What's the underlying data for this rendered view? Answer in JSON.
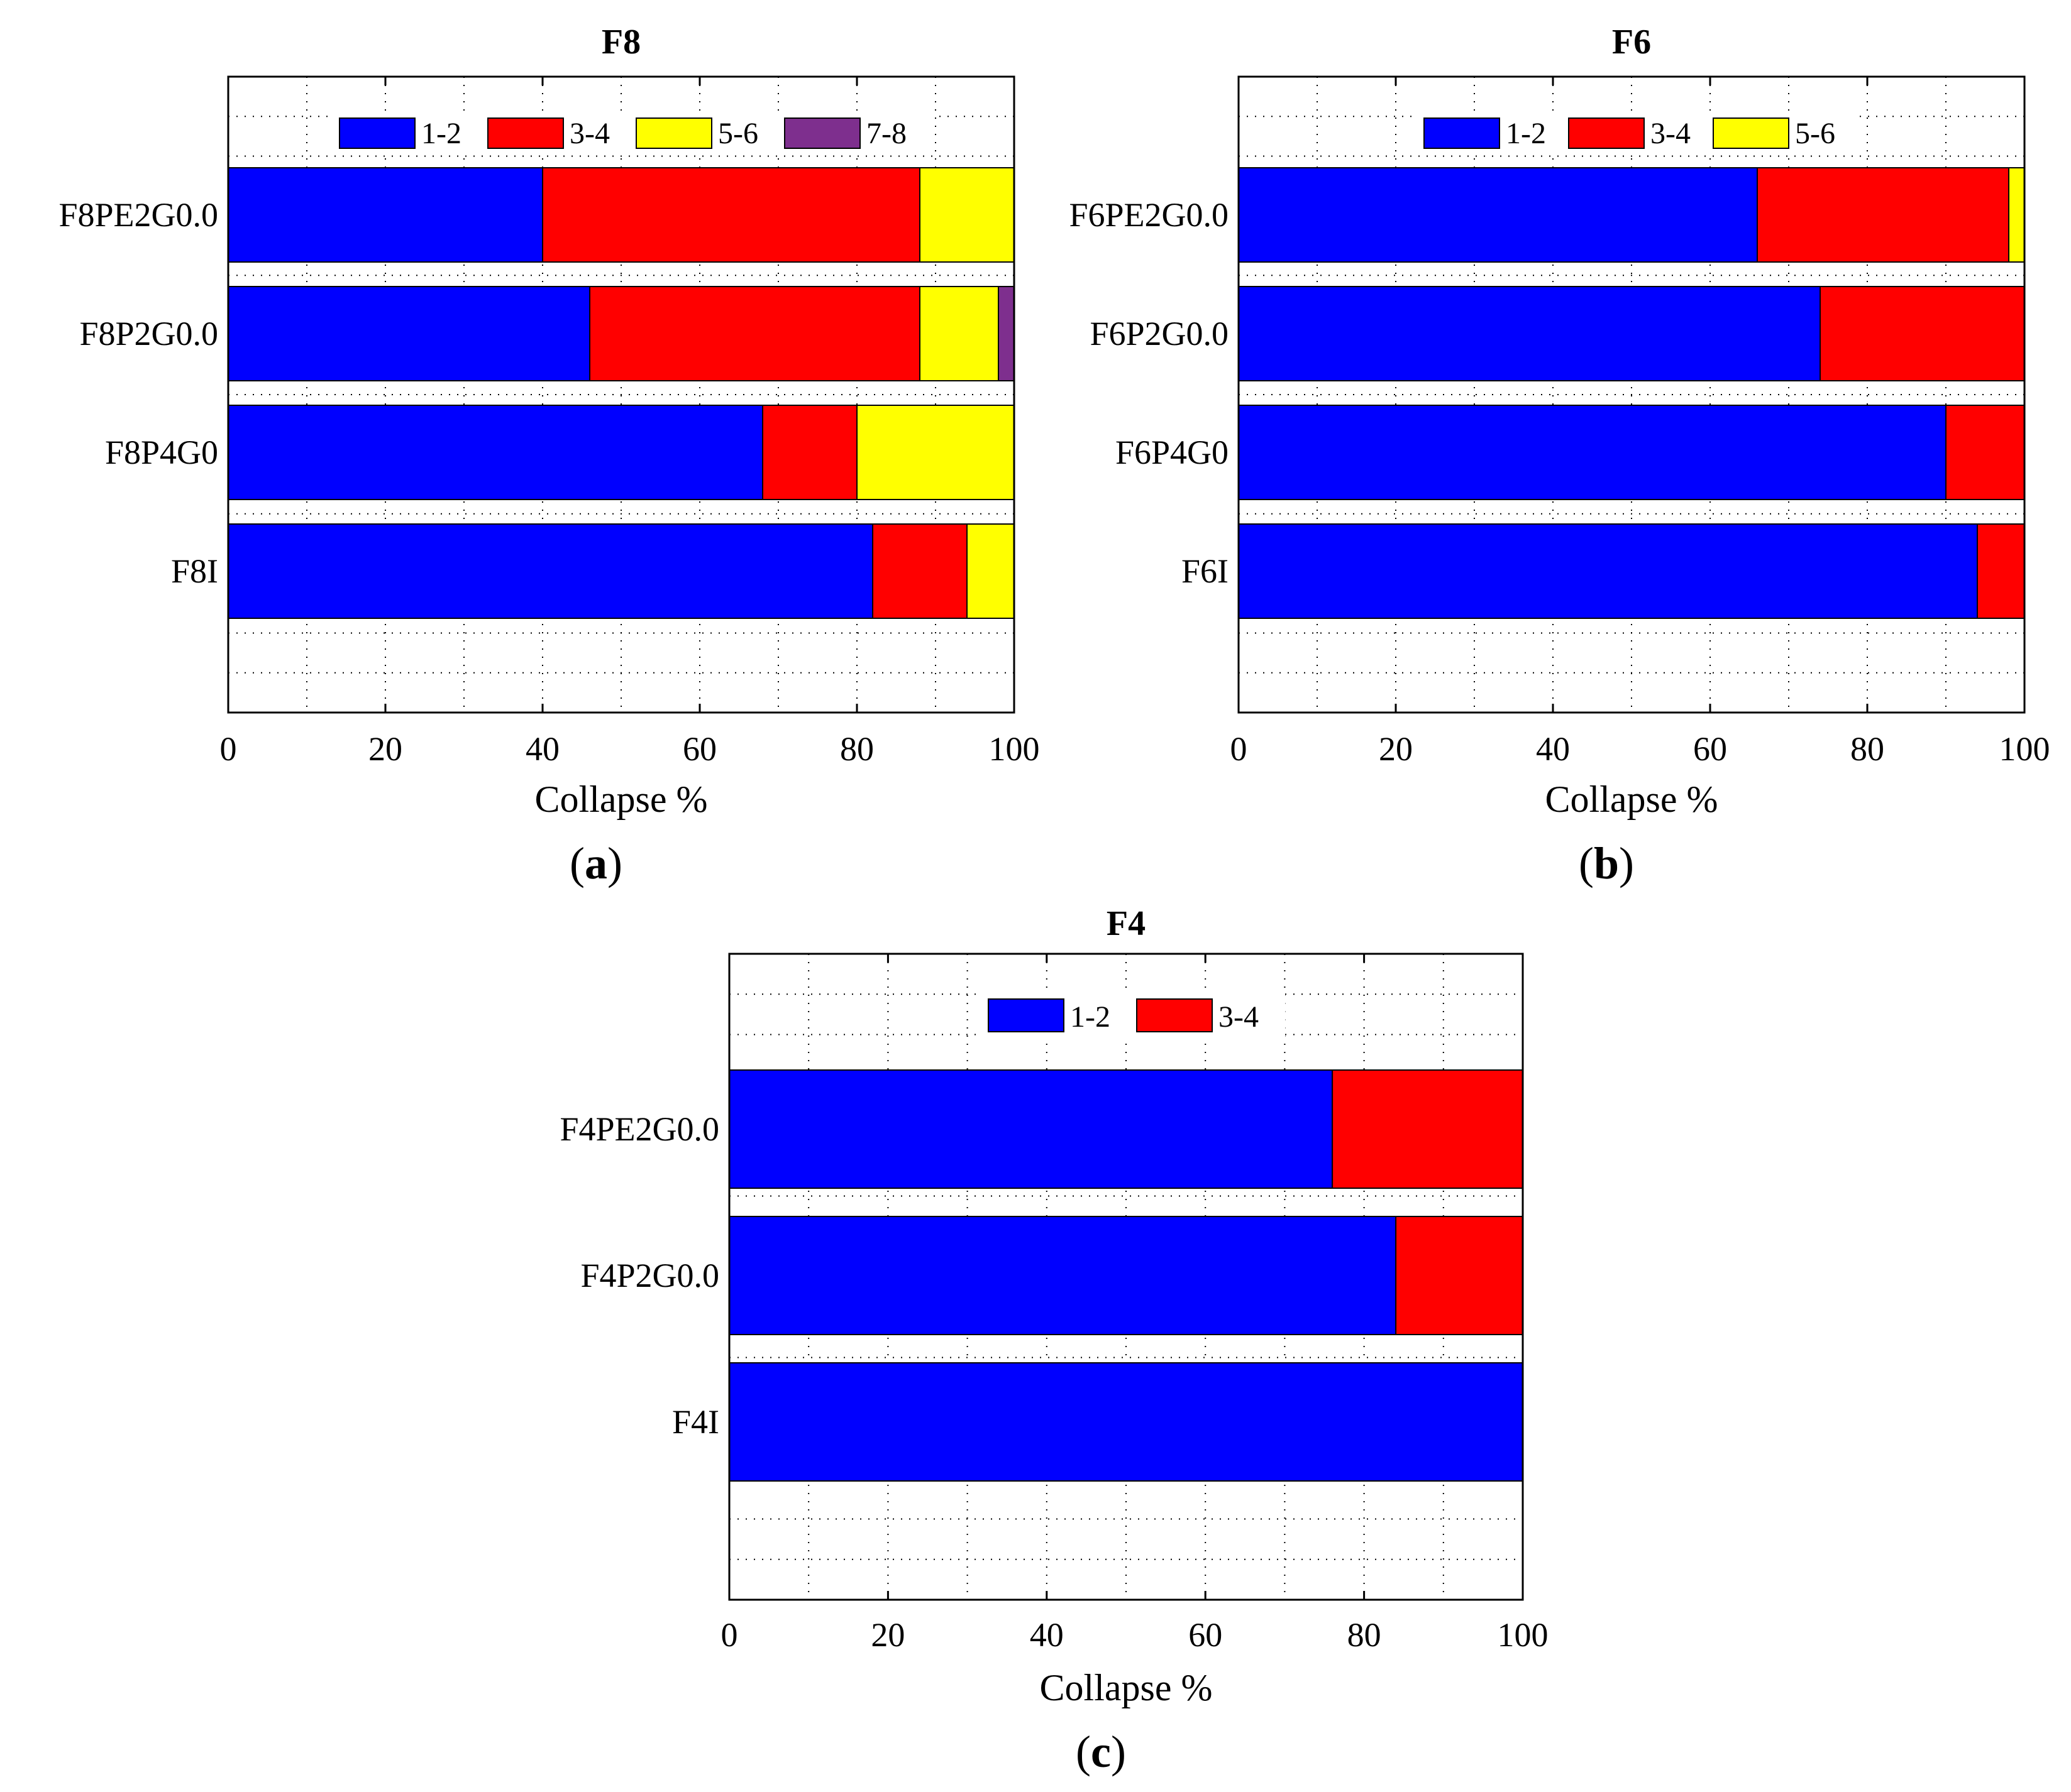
{
  "chart_data": [
    {
      "type": "bar",
      "orientation": "horizontal",
      "stacked": true,
      "title": "F8",
      "panel_label": "a",
      "xlabel": "Collapse %",
      "ylabel": "",
      "xlim": [
        0,
        100
      ],
      "xticks": [
        "0",
        "20",
        "40",
        "60",
        "80",
        "100"
      ],
      "categories": [
        "F8PE2G0.0",
        "F8P2G0.0",
        "F8P4G0",
        "F8I"
      ],
      "series": [
        {
          "name": "1-2",
          "color": "#0000ff",
          "values": [
            40,
            46,
            68,
            82
          ]
        },
        {
          "name": "3-4",
          "color": "#ff0000",
          "values": [
            48,
            42,
            12,
            12
          ]
        },
        {
          "name": "5-6",
          "color": "#ffff00",
          "values": [
            12,
            10,
            20,
            6
          ]
        },
        {
          "name": "7-8",
          "color": "#7e2f8e",
          "values": [
            0,
            2,
            0,
            0
          ]
        }
      ],
      "legend_position": "top",
      "grid": true
    },
    {
      "type": "bar",
      "orientation": "horizontal",
      "stacked": true,
      "title": "F6",
      "panel_label": "b",
      "xlabel": "Collapse %",
      "ylabel": "",
      "xlim": [
        0,
        100
      ],
      "xticks": [
        "0",
        "20",
        "40",
        "60",
        "80",
        "100"
      ],
      "categories": [
        "F6PE2G0.0",
        "F6P2G0.0",
        "F6P4G0",
        "F6I"
      ],
      "series": [
        {
          "name": "1-2",
          "color": "#0000ff",
          "values": [
            66,
            74,
            90,
            94
          ]
        },
        {
          "name": "3-4",
          "color": "#ff0000",
          "values": [
            32,
            26,
            10,
            6
          ]
        },
        {
          "name": "5-6",
          "color": "#ffff00",
          "values": [
            2,
            0,
            0,
            0
          ]
        }
      ],
      "legend_position": "top",
      "grid": true
    },
    {
      "type": "bar",
      "orientation": "horizontal",
      "stacked": true,
      "title": "F4",
      "panel_label": "c",
      "xlabel": "Collapse %",
      "ylabel": "",
      "xlim": [
        0,
        100
      ],
      "xticks": [
        "0",
        "20",
        "40",
        "60",
        "80",
        "100"
      ],
      "categories": [
        "F4PE2G0.0",
        "F4P2G0.0",
        "F4I"
      ],
      "series": [
        {
          "name": "1-2",
          "color": "#0000ff",
          "values": [
            76,
            84,
            100
          ]
        },
        {
          "name": "3-4",
          "color": "#ff0000",
          "values": [
            24,
            16,
            0
          ]
        }
      ],
      "legend_position": "top",
      "grid": true
    }
  ]
}
